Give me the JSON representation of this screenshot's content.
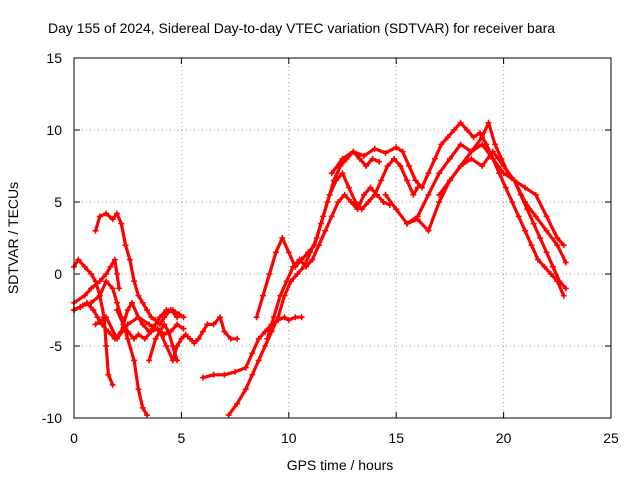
{
  "chart_data": {
    "type": "scatter",
    "title": "Day 155 of 2024, Sidereal Day-to-day VTEC variation (SDTVAR) for receiver bara",
    "xlabel": "GPS time / hours",
    "ylabel": "SDTVAR / TECUs",
    "xlim": [
      0,
      25
    ],
    "ylim": [
      -10,
      15
    ],
    "xticks": [
      0,
      5,
      10,
      15,
      20,
      25
    ],
    "yticks": [
      -10,
      -5,
      0,
      5,
      10,
      15
    ],
    "xtick_labels": [
      "0",
      "5",
      "10",
      "15",
      "20",
      "25"
    ],
    "ytick_labels": [
      "-10",
      "-5",
      "0",
      "5",
      "10",
      "15"
    ],
    "grid": true,
    "marker": "+",
    "color": "#ff0000",
    "series": [
      {
        "name": "series-1",
        "x": [
          0.0,
          0.5,
          0.8,
          1.2,
          1.5,
          1.7,
          1.9,
          2.0,
          2.1
        ],
        "y": [
          -2.0,
          -1.5,
          -1.0,
          -0.5,
          0.0,
          0.5,
          1.0,
          0.0,
          -1.0
        ]
      },
      {
        "name": "series-2",
        "x": [
          0.0,
          0.4,
          0.8,
          1.2,
          1.5,
          1.8,
          2.0,
          2.2,
          2.5,
          2.8,
          3.0,
          3.2,
          3.4
        ],
        "y": [
          -2.5,
          -2.2,
          -2.0,
          -1.5,
          -0.5,
          -1.0,
          -2.0,
          -3.0,
          -4.5,
          -6.0,
          -8.0,
          -9.3,
          -9.8
        ]
      },
      {
        "name": "series-3",
        "x": [
          0.0,
          0.2,
          0.5,
          0.8,
          1.0,
          1.2,
          1.4,
          1.5,
          1.6,
          1.8
        ],
        "y": [
          0.5,
          1.0,
          0.5,
          0.0,
          -0.5,
          -1.5,
          -3.0,
          -5.0,
          -7.0,
          -7.7
        ]
      },
      {
        "name": "series-4",
        "x": [
          0.0,
          0.3,
          0.6,
          0.9,
          1.1,
          1.3,
          1.6,
          1.9,
          2.2,
          2.5,
          2.7,
          3.0,
          3.2,
          3.5,
          3.8,
          4.0,
          4.3,
          4.6,
          4.9,
          5.1
        ],
        "y": [
          -2.5,
          -2.3,
          -2.0,
          -2.5,
          -3.0,
          -3.5,
          -4.0,
          -4.5,
          -4.0,
          -2.5,
          -2.0,
          -3.0,
          -3.5,
          -4.0,
          -3.5,
          -3.0,
          -2.5,
          -2.5,
          -2.8,
          -3.0
        ]
      },
      {
        "name": "series-5",
        "x": [
          1.0,
          1.2,
          1.5,
          1.8,
          2.0,
          2.2,
          2.4,
          2.6,
          2.8,
          3.0,
          3.2,
          3.4,
          3.6,
          3.8,
          4.0,
          4.2,
          4.5,
          4.8
        ],
        "y": [
          3.0,
          4.0,
          4.2,
          3.8,
          4.2,
          3.5,
          2.0,
          1.0,
          -0.5,
          -1.5,
          -2.0,
          -2.5,
          -3.0,
          -3.2,
          -3.5,
          -3.0,
          -2.5,
          -3.0
        ]
      },
      {
        "name": "series-6",
        "x": [
          2.0,
          2.3,
          2.5,
          2.8,
          3.0,
          3.3,
          3.6,
          3.9,
          4.2,
          4.5,
          4.8,
          5.1
        ],
        "y": [
          -2.5,
          -3.5,
          -4.0,
          -4.5,
          -4.2,
          -4.5,
          -4.0,
          -3.8,
          -4.2,
          -4.0,
          -3.5,
          -3.8
        ]
      },
      {
        "name": "series-7",
        "x": [
          1.0,
          1.5,
          2.0,
          2.5,
          3.0,
          3.5,
          4.0,
          4.3,
          4.6,
          4.8,
          5.0,
          5.2,
          5.4,
          5.6,
          5.8,
          6.0,
          6.2,
          6.5,
          6.8,
          7.0,
          7.3,
          7.6
        ],
        "y": [
          -3.5,
          -3.0,
          -4.5,
          -3.5,
          -3.0,
          -3.5,
          -4.0,
          -5.0,
          -6.0,
          -5.0,
          -4.5,
          -4.2,
          -4.5,
          -4.8,
          -4.5,
          -4.0,
          -3.5,
          -3.5,
          -3.0,
          -4.0,
          -4.5,
          -4.5
        ]
      },
      {
        "name": "series-8",
        "x": [
          3.5,
          3.8,
          4.0,
          4.2,
          4.4,
          4.6,
          4.8
        ],
        "y": [
          -6.0,
          -4.5,
          -4.0,
          -3.5,
          -4.0,
          -5.0,
          -6.0
        ]
      },
      {
        "name": "series-9",
        "x": [
          6.0,
          6.5,
          7.0,
          7.5,
          8.0,
          8.3,
          8.6,
          8.9,
          9.2,
          9.5,
          9.8,
          10.0,
          10.3,
          10.6
        ],
        "y": [
          -7.2,
          -7.0,
          -7.0,
          -6.8,
          -6.5,
          -5.5,
          -4.5,
          -4.0,
          -3.5,
          -3.2,
          -3.0,
          -3.2,
          -3.0,
          -3.0
        ]
      },
      {
        "name": "series-10",
        "x": [
          7.2,
          7.6,
          8.0,
          8.3,
          8.6,
          8.9,
          9.2,
          9.5,
          9.8,
          10.1,
          10.4,
          10.7,
          11.0,
          11.3,
          11.6,
          11.9,
          12.2,
          12.5,
          12.8,
          13.1,
          13.4,
          13.7,
          14.0,
          14.3,
          14.6,
          14.9,
          15.2,
          15.5,
          15.8,
          16.0
        ],
        "y": [
          -9.8,
          -9.0,
          -8.0,
          -7.0,
          -6.0,
          -5.0,
          -4.0,
          -3.0,
          -1.5,
          -0.5,
          0.0,
          0.5,
          1.5,
          2.5,
          4.0,
          5.5,
          6.5,
          7.0,
          6.0,
          5.0,
          4.5,
          5.0,
          5.5,
          6.5,
          7.5,
          8.0,
          7.5,
          6.5,
          5.5,
          6.0
        ]
      },
      {
        "name": "series-11",
        "x": [
          9.0,
          9.3,
          9.6,
          9.9,
          10.2,
          10.5,
          10.8,
          11.1,
          11.4,
          11.7,
          12.0,
          12.3,
          12.6,
          12.9,
          13.2,
          13.5,
          13.8,
          14.1,
          14.4,
          14.7
        ],
        "y": [
          -4.5,
          -3.0,
          -1.5,
          -0.5,
          0.5,
          1.0,
          0.5,
          1.0,
          2.0,
          3.0,
          4.0,
          5.0,
          5.5,
          5.0,
          4.5,
          5.5,
          6.0,
          5.5,
          5.0,
          4.8
        ]
      },
      {
        "name": "series-12",
        "x": [
          8.5,
          8.8,
          9.1,
          9.4,
          9.7,
          10.0,
          10.3,
          10.6,
          10.9,
          11.2,
          11.5,
          11.8,
          12.1,
          12.4,
          12.7,
          13.0,
          13.3,
          13.6,
          13.9,
          14.2
        ],
        "y": [
          -3.0,
          -1.5,
          0.0,
          1.5,
          2.5,
          1.5,
          0.5,
          1.0,
          1.5,
          2.0,
          3.5,
          5.0,
          6.5,
          7.5,
          8.0,
          8.5,
          8.0,
          7.5,
          8.0,
          7.8
        ]
      },
      {
        "name": "series-13",
        "x": [
          12.0,
          12.5,
          13.0,
          13.5,
          14.0,
          14.5,
          15.0,
          15.3,
          15.6,
          15.9,
          16.2,
          16.5,
          16.8,
          17.1,
          17.4,
          17.7,
          18.0,
          18.3,
          18.6,
          18.9,
          19.2,
          19.5,
          19.8,
          20.1,
          20.4,
          20.7,
          21.0,
          21.3,
          21.6,
          21.9,
          22.2,
          22.5,
          22.8
        ],
        "y": [
          7.0,
          8.0,
          8.5,
          8.2,
          8.7,
          8.4,
          8.8,
          8.5,
          7.5,
          6.5,
          6.0,
          7.0,
          8.0,
          9.0,
          9.5,
          10.0,
          10.5,
          10.0,
          9.5,
          9.8,
          9.0,
          8.0,
          7.0,
          6.0,
          5.0,
          4.0,
          3.0,
          2.0,
          1.0,
          0.5,
          0.0,
          -0.5,
          -1.5
        ]
      },
      {
        "name": "series-14",
        "x": [
          14.5,
          15.0,
          15.5,
          16.0,
          16.5,
          17.0,
          17.5,
          18.0,
          18.5,
          19.0,
          19.3,
          19.6,
          19.9,
          20.2,
          20.5,
          20.8,
          21.1,
          21.4,
          21.7,
          22.0,
          22.3,
          22.6,
          22.9
        ],
        "y": [
          5.5,
          4.5,
          3.5,
          4.0,
          5.5,
          7.0,
          8.0,
          9.0,
          8.5,
          9.5,
          10.5,
          9.0,
          8.0,
          7.0,
          6.5,
          5.5,
          4.5,
          3.5,
          2.5,
          1.5,
          0.5,
          -0.5,
          -1.0
        ]
      },
      {
        "name": "series-15",
        "x": [
          15.5,
          16.0,
          16.5,
          17.0,
          17.5,
          18.0,
          18.5,
          19.0,
          19.5,
          20.0,
          20.5,
          21.0,
          21.5,
          22.0,
          22.5,
          22.9
        ],
        "y": [
          3.5,
          3.8,
          3.0,
          5.0,
          6.5,
          7.5,
          8.0,
          7.5,
          8.5,
          7.5,
          6.5,
          5.0,
          4.0,
          3.0,
          2.0,
          0.8
        ]
      },
      {
        "name": "series-16",
        "x": [
          17.0,
          17.5,
          18.0,
          18.5,
          19.0,
          19.5,
          20.0,
          20.5,
          21.0,
          21.5,
          22.0,
          22.5,
          22.8
        ],
        "y": [
          5.5,
          6.5,
          7.5,
          8.5,
          9.0,
          8.0,
          7.0,
          6.5,
          6.0,
          5.5,
          4.0,
          2.5,
          2.0
        ]
      }
    ]
  }
}
